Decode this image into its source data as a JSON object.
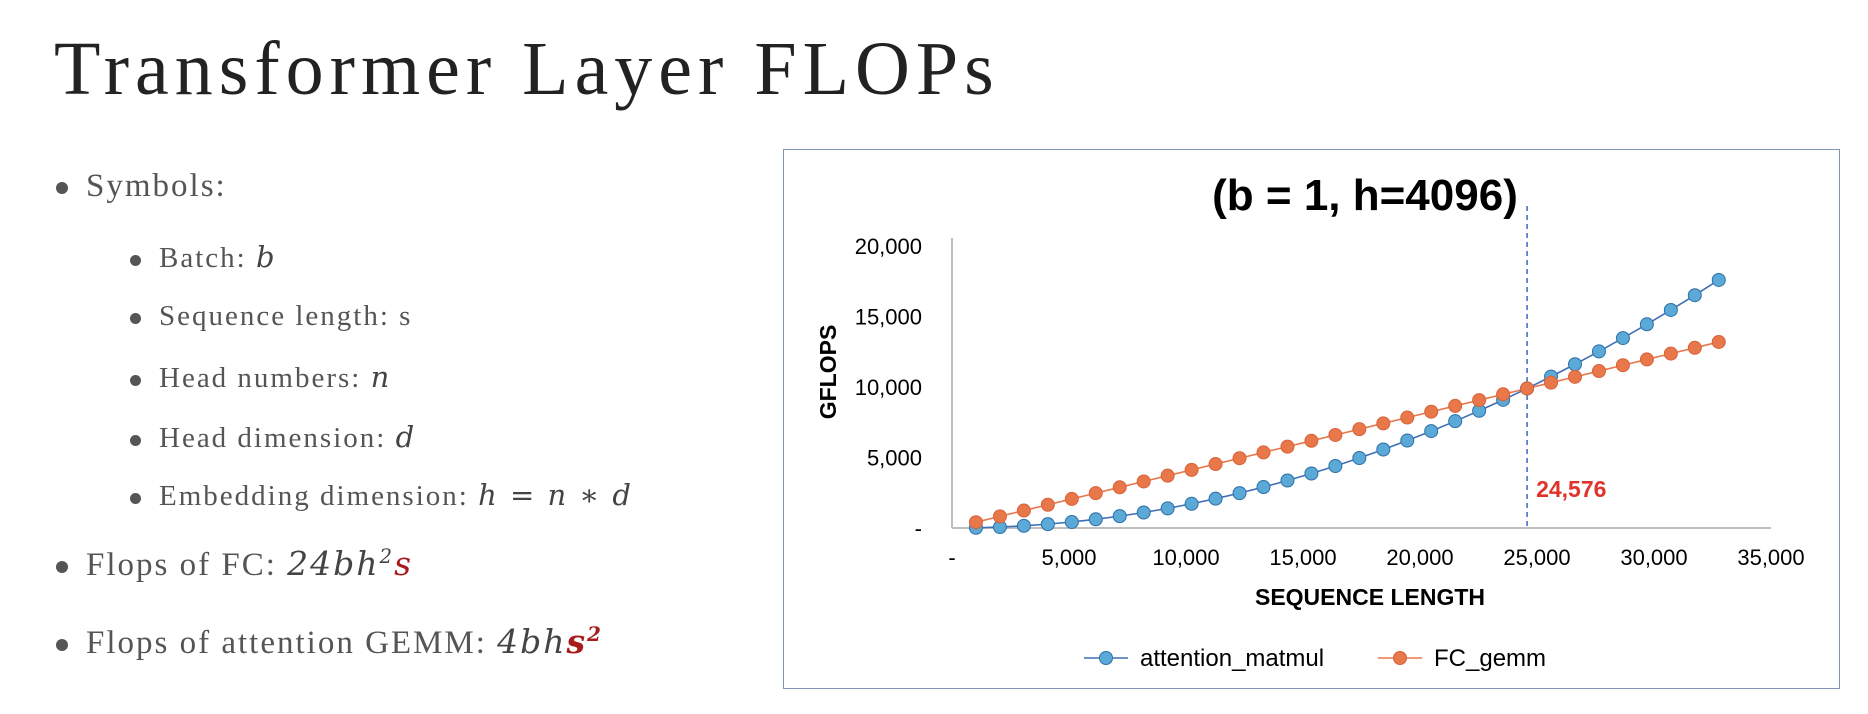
{
  "slide": {
    "title": "Transformer Layer FLOPs",
    "bullets": {
      "symbols": "Symbols:",
      "batch_label": "Batch: ",
      "batch_sym": "b",
      "seq_label": "Sequence length: s",
      "heads_label": "Head numbers: ",
      "heads_sym": "n",
      "dim_label": "Head dimension: ",
      "dim_sym": "d",
      "embed_label": "Embedding dimension: ",
      "embed_expr": "h = n  ∗ d",
      "fc_label": "Flops of FC:  ",
      "fc_coef": "24bh",
      "fc_exp": "2",
      "fc_s": "s",
      "attn_label": "Flops of attention GEMM:  ",
      "attn_coef": "4bh",
      "attn_s": "s",
      "attn_exp": "2"
    }
  },
  "colors": {
    "attention": "#5aa9d6",
    "attention_line": "#3f6fb6",
    "fc": "#e8774a",
    "fc_line": "#e8774a",
    "annotation": "#e0342b",
    "vline": "#3a66c4",
    "frame": "#7f93b5"
  },
  "chart_data": {
    "type": "line",
    "title": "(b = 1,  h=4096)",
    "xlabel": "SEQUENCE LENGTH",
    "ylabel": "GFLOPS",
    "xlim": [
      0,
      35000
    ],
    "ylim": [
      0,
      20000
    ],
    "x_ticks": [
      0,
      5000,
      10000,
      15000,
      20000,
      25000,
      30000,
      35000
    ],
    "x_tick_labels": [
      "-",
      "5,000",
      "10,000",
      "15,000",
      "20,000",
      "25,000",
      "30,000",
      "35,000"
    ],
    "y_ticks": [
      0,
      5000,
      10000,
      15000,
      20000
    ],
    "y_tick_labels": [
      "-",
      "5,000",
      "10,000",
      "15,000",
      "20,000"
    ],
    "x": [
      1024,
      2048,
      3072,
      4096,
      5120,
      6144,
      7168,
      8192,
      9216,
      10240,
      11264,
      12288,
      13312,
      14336,
      15360,
      16384,
      17408,
      18432,
      19456,
      20480,
      21504,
      22528,
      23552,
      24576,
      25600,
      26624,
      27648,
      28672,
      29696,
      30720,
      31744,
      32768
    ],
    "series": [
      {
        "name": "attention_matmul",
        "values": [
          17,
          69,
          155,
          275,
          429,
          618,
          842,
          1100,
          1392,
          1718,
          2079,
          2474,
          2904,
          3368,
          3866,
          4398,
          4965,
          5567,
          6202,
          6872,
          7576,
          8315,
          9088,
          9896,
          10737,
          11613,
          12524,
          13469,
          14448,
          15462,
          16509,
          17592
        ]
      },
      {
        "name": "FC_gemm",
        "values": [
          412,
          825,
          1237,
          1649,
          2062,
          2474,
          2886,
          3299,
          3711,
          4123,
          4535,
          4948,
          5360,
          5772,
          6185,
          6597,
          7009,
          7421,
          7834,
          8246,
          8658,
          9071,
          9483,
          9896,
          10307,
          10719,
          11132,
          11544,
          11956,
          12369,
          12781,
          13194
        ]
      }
    ],
    "vline_x": 24576,
    "annotation": "24,576",
    "legend_position": "bottom",
    "grid": false
  }
}
